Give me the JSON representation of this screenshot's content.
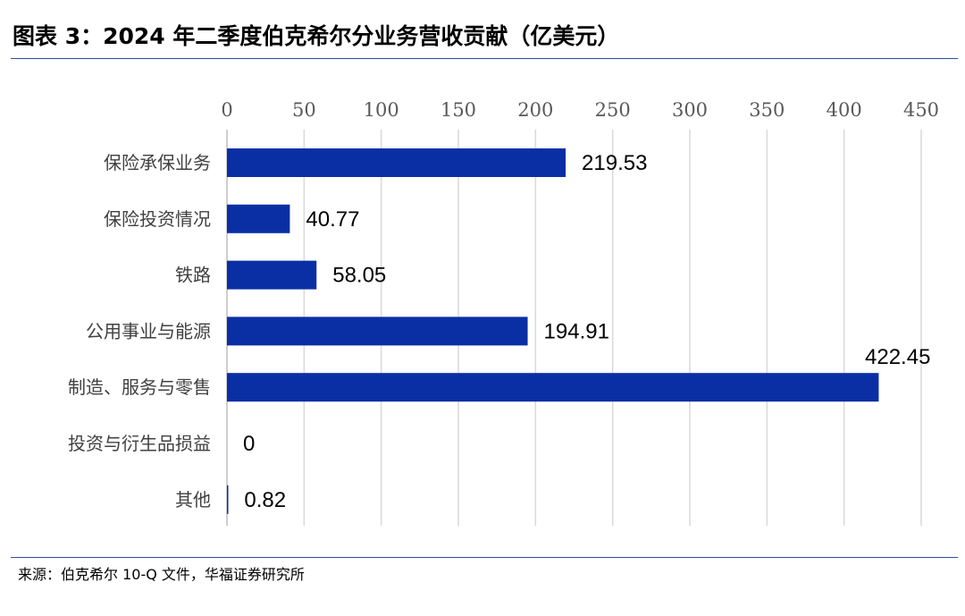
{
  "title": "图表 3：2024 年二季度伯克希尔分业务营收贡献（亿美元）",
  "source": "来源：伯克希尔 10-Q 文件，华福证券研究所",
  "chart_data": {
    "type": "bar",
    "orientation": "horizontal",
    "categories": [
      "保险承保业务",
      "保险投资情况",
      "铁路",
      "公用事业与能源",
      "制造、服务与零售",
      "投资与衍生品损益",
      "其他"
    ],
    "values": [
      219.53,
      40.77,
      58.05,
      194.91,
      422.45,
      0,
      0.82
    ],
    "value_labels": [
      "219.53",
      "40.77",
      "58.05",
      "194.91",
      "422.45",
      "0",
      "0.82"
    ],
    "x_ticks": [
      0,
      50,
      100,
      150,
      200,
      250,
      300,
      350,
      400,
      450
    ],
    "x_tick_labels": [
      "0",
      "50",
      "100",
      "150",
      "200",
      "250",
      "300",
      "350",
      "400",
      "450"
    ],
    "xlim": [
      0,
      450
    ],
    "x_axis_position": "top",
    "grid": true,
    "bar_color": "#0a2fa4",
    "grid_color": "#d9d9d9"
  }
}
